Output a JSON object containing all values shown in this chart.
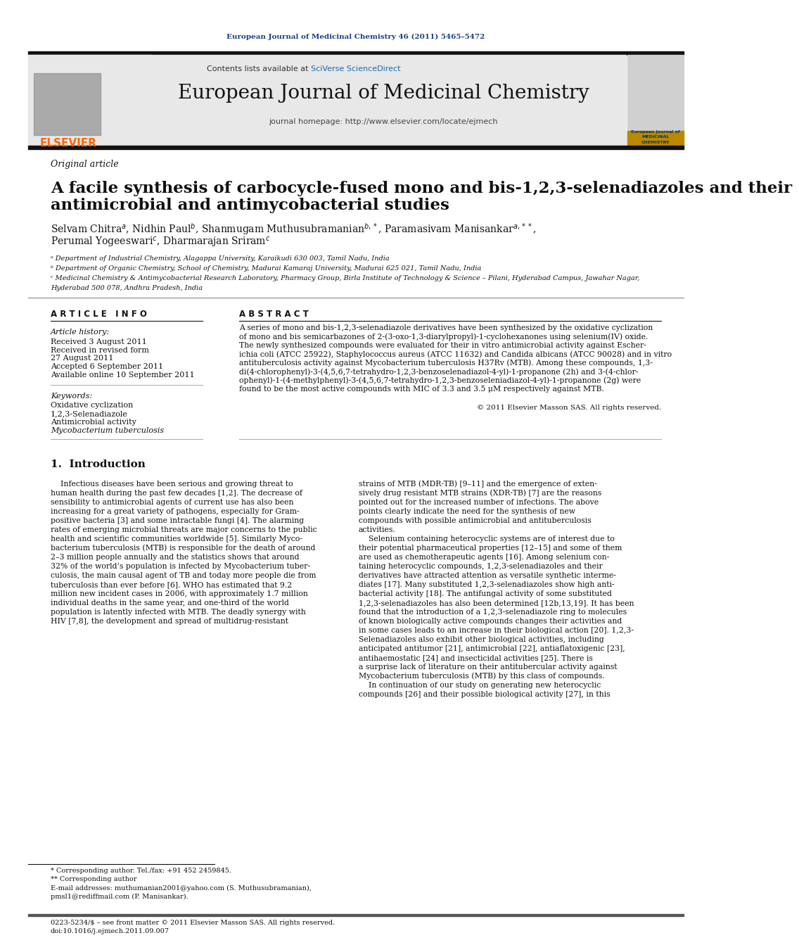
{
  "journal_ref": "European Journal of Medicinal Chemistry 46 (2011) 5465–5472",
  "journal_name": "European Journal of Medicinal Chemistry",
  "contents_line": "Contents lists available at SciVerse ScienceDirect",
  "homepage_line": "journal homepage: http://www.elsevier.com/locate/ejmech",
  "article_type": "Original article",
  "title_line1": "A facile synthesis of carbocycle-fused mono and bis-1,2,3-selenadiazoles and their",
  "title_line2": "antimicrobial and antimycobacterial studies",
  "authors_line1": "Selvam Chitra$^a$, Nidhin Paul$^b$, Shanmugam Muthusubramanian$^{b,*}$, Paramasivam Manisankar$^{a,**}$,",
  "authors_line2": "Perumal Yogeeswari$^c$, Dharmarajan Sriram$^c$",
  "affil_a": "ᵃ Department of Industrial Chemistry, Alagappa University, Karaikudi 630 003, Tamil Nadu, India",
  "affil_b": "ᵇ Department of Organic Chemistry, School of Chemistry, Madurai Kamaraj University, Madurai 625 021, Tamil Nadu, India",
  "affil_c1": "ᶜ Medicinal Chemistry & Antimycobacterial Research Laboratory, Pharmacy Group, Birla Institute of Technology & Science – Pilani, Hyderabad Campus, Jawahar Nagar,",
  "affil_c2": "Hyderabad 500 078, Andhra Pradesh, India",
  "article_info_header": "A R T I C L E   I N F O",
  "abstract_header": "A B S T R A C T",
  "article_history_label": "Article history:",
  "received": "Received 3 August 2011",
  "revised": "Received in revised form",
  "revised2": "27 August 2011",
  "accepted": "Accepted 6 September 2011",
  "available": "Available online 10 September 2011",
  "keywords_label": "Keywords:",
  "kw1": "Oxidative cyclization",
  "kw2": "1,2,3-Selenadiazole",
  "kw3": "Antimicrobial activity",
  "kw4": "Mycobacterium tuberculosis",
  "abstract_lines": [
    "A series of mono and bis-1,2,3-selenadiazole derivatives have been synthesized by the oxidative cyclization",
    "of mono and bis semicarbazones of 2-(3-oxo-1,3-diarylpropyl)-1-cyclohexanones using selenium(IV) oxide.",
    "The newly synthesized compounds were evaluated for their in vitro antimicrobial activity against Escher-",
    "ichia coli (ATCC 25922), Staphylococcus aureus (ATCC 11632) and Candida albicans (ATCC 90028) and in vitro",
    "antituberculosis activity against Mycobacterium tuberculosis H37Rv (MTB). Among these compounds, 1,3-",
    "di(4-chlorophenyl)-3-(4,5,6,7-tetrahydro-1,2,3-benzoselenadiazol-4-yl)-1-propanone (2h) and 3-(4-chlor-",
    "ophenyl)-1-(4-methylphenyl)-3-(4,5,6,7-tetrahydro-1,2,3-benzoseleniadiazol-4-yl)-1-propanone (2g) were",
    "found to be the most active compounds with MIC of 3.3 and 3.5 μM respectively against MTB."
  ],
  "copyright": "© 2011 Elsevier Masson SAS. All rights reserved.",
  "section1_title": "1.  Introduction",
  "intro_col1_lines": [
    "    Infectious diseases have been serious and growing threat to",
    "human health during the past few decades [1,2]. The decrease of",
    "sensibility to antimicrobial agents of current use has also been",
    "increasing for a great variety of pathogens, especially for Gram-",
    "positive bacteria [3] and some intractable fungi [4]. The alarming",
    "rates of emerging microbial threats are major concerns to the public",
    "health and scientific communities worldwide [5]. Similarly Myco-",
    "bacterium tuberculosis (MTB) is responsible for the death of around",
    "2–3 million people annually and the statistics shows that around",
    "32% of the world’s population is infected by Mycobacterium tuber-",
    "culosis, the main causal agent of TB and today more people die from",
    "tuberculosis than ever before [6]. WHO has estimated that 9.2",
    "million new incident cases in 2006, with approximately 1.7 million",
    "individual deaths in the same year, and one-third of the world",
    "population is latently infected with MTB. The deadly synergy with",
    "HIV [7,8], the development and spread of multidrug-resistant"
  ],
  "intro_col2_lines": [
    "strains of MTB (MDR-TB) [9–11] and the emergence of exten-",
    "sively drug resistant MTB strains (XDR-TB) [7] are the reasons",
    "pointed out for the increased number of infections. The above",
    "points clearly indicate the need for the synthesis of new",
    "compounds with possible antimicrobial and antituberculosis",
    "activities.",
    "    Selenium containing heterocyclic systems are of interest due to",
    "their potential pharmaceutical properties [12–15] and some of them",
    "are used as chemotherapeutic agents [16]. Among selenium con-",
    "taining heterocyclic compounds, 1,2,3-selenadiazoles and their",
    "derivatives have attracted attention as versatile synthetic interme-",
    "diates [17]. Many substituted 1,2,3-selenadiazoles show high anti-",
    "bacterial activity [18]. The antifungal activity of some substituted",
    "1,2,3-selenadiazoles has also been determined [12b,13,19]. It has been",
    "found that the introduction of a 1,2,3-selenadiazole ring to molecules",
    "of known biologically active compounds changes their activities and",
    "in some cases leads to an increase in their biological action [20]. 1,2,3-",
    "Selenadiazoles also exhibit other biological activities, including",
    "anticipated antitumor [21], antimicrobial [22], antiaflatoxigenic [23],",
    "antihaemostatic [24] and insecticidal activities [25]. There is",
    "a surprise lack of literature on their antitubercular activity against",
    "Mycobacterium tuberculosis (MTB) by this class of compounds.",
    "    In continuation of our study on generating new heterocyclic",
    "compounds [26] and their possible biological activity [27], in this"
  ],
  "footer_line1": "* Corresponding author. Tel./fax: +91 452 2459845.",
  "footer_line2": "** Corresponding author",
  "footer_line3": "E-mail addresses: muthumanian2001@yahoo.com (S. Muthusubramanian),",
  "footer_line4": "pmsl1@rediffmail.com (P. Manisankar).",
  "footer_bottom1": "0223-5234/$ – see front matter © 2011 Elsevier Masson SAS. All rights reserved.",
  "footer_bottom2": "doi:10.1016/j.ejmech.2011.09.007",
  "bg_color": "#ffffff",
  "header_bg": "#e8e8e8",
  "elsevier_color": "#ff6600",
  "link_color": "#1a6aad",
  "dark_link_color": "#1a3a8a",
  "top_bar_color": "#111111"
}
